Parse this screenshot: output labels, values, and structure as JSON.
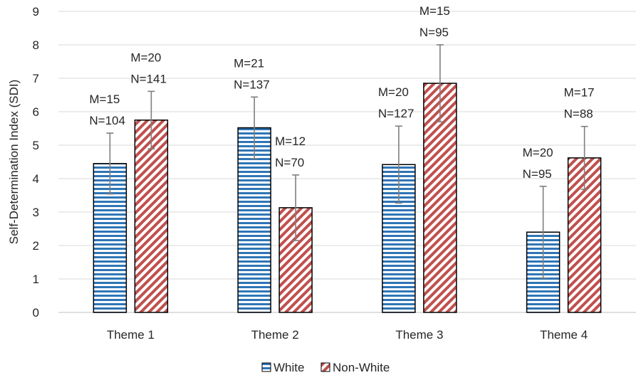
{
  "chart_data": {
    "type": "bar",
    "title": "",
    "xlabel": "",
    "ylabel": "Self-Determination Index (SDI)",
    "ylim": [
      0,
      9
    ],
    "yticks": [
      0,
      1,
      2,
      3,
      4,
      5,
      6,
      7,
      8,
      9
    ],
    "grid": "horizontal",
    "legend_position": "bottom",
    "categories": [
      "Theme 1",
      "Theme 2",
      "Theme 3",
      "Theme 4"
    ],
    "series": [
      {
        "name": "White",
        "color": "#2E75B6",
        "pattern": "horizontal-stripes",
        "values": [
          4.45,
          5.52,
          4.42,
          2.4
        ],
        "error": [
          0.91,
          0.92,
          1.15,
          1.37
        ],
        "labels": [
          [
            "M=15",
            "N=104"
          ],
          [
            "M=21",
            "N=137"
          ],
          [
            "M=20",
            "N=127"
          ],
          [
            "M=20",
            "N=95"
          ]
        ]
      },
      {
        "name": "Non-White",
        "color": "#C0504D",
        "pattern": "diagonal-stripes",
        "values": [
          5.75,
          3.13,
          6.85,
          4.62
        ],
        "error": [
          0.86,
          0.98,
          1.15,
          0.94
        ],
        "labels": [
          [
            "M=20",
            "N=141"
          ],
          [
            "M=12",
            "N=70"
          ],
          [
            "M=15",
            "N=95"
          ],
          [
            "M=17",
            "N=88"
          ]
        ]
      }
    ]
  }
}
